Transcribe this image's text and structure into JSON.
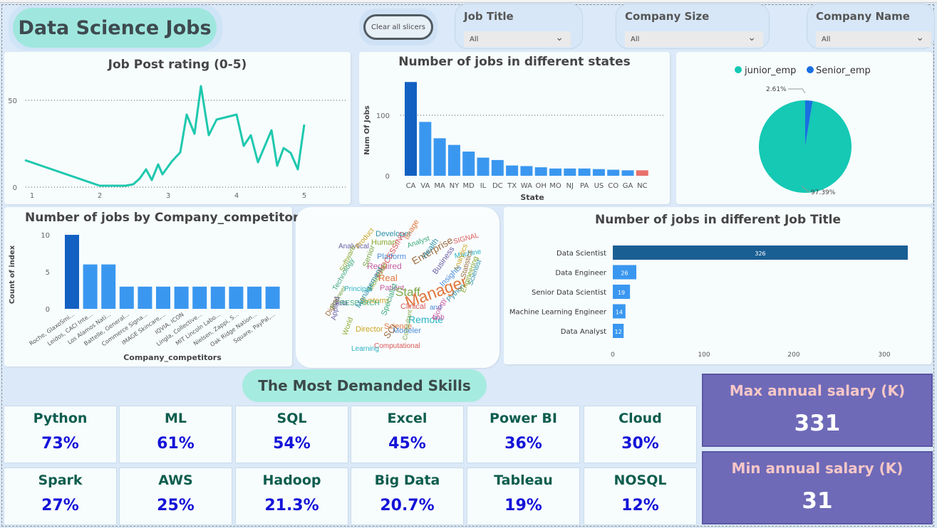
{
  "header": {
    "title": "Data Science Jobs",
    "clear_label": "Clear all slicers",
    "slicers": [
      {
        "label": "Job Title",
        "value": "All"
      },
      {
        "label": "Company Size",
        "value": "All"
      },
      {
        "label": "Company Name",
        "value": "All"
      }
    ]
  },
  "rating_chart": {
    "title": "Job Post rating (0-5)",
    "x_ticks": [
      "1",
      "2",
      "3",
      "4",
      "5"
    ],
    "y_ticks": [
      "0",
      "50"
    ],
    "line_color": "#1fc8ae"
  },
  "states_chart": {
    "title": "Number of jobs in different states",
    "ylabel": "Num Of Jobs",
    "xlabel": "State",
    "y_ticks": [
      "0",
      "100"
    ],
    "categories": [
      "CA",
      "VA",
      "MA",
      "NY",
      "MD",
      "IL",
      "DC",
      "TX",
      "WA",
      "OH",
      "MO",
      "NJ",
      "PA",
      "US",
      "CO",
      "GA",
      "NC"
    ],
    "values": [
      155,
      89,
      62,
      51,
      40,
      30,
      26,
      17,
      16,
      14,
      12,
      12,
      12,
      11,
      10,
      9,
      9
    ]
  },
  "pie_chart": {
    "legend": [
      {
        "name": "junior_emp",
        "color": "#15c9b4"
      },
      {
        "name": "Senior_emp",
        "color": "#1a6fe0"
      }
    ],
    "slices": [
      {
        "label": "97.39%",
        "value": 97.39
      },
      {
        "label": "2.61%",
        "value": 2.61
      }
    ]
  },
  "competitors_chart": {
    "title": "Number of jobs by Company_competitors",
    "ylabel": "Count of index",
    "xlabel": "Company_competitors",
    "y_ticks": [
      "0",
      "5",
      "10"
    ],
    "categories": [
      "Roche, GlaxoSmi...",
      "Leidos, CACI Inte...",
      "Los Alamos Nati...",
      "Battelle, General...",
      "Commerce Signa...",
      "IMAGE Skincare,...",
      "IQVIA, ICON",
      "Lingla, Collective...",
      "MIT Lincoln Labo...",
      "Nielsen, Zappi, S...",
      "Oak Ridge Nation...",
      "Square, PayPal,..."
    ],
    "values": [
      10,
      6,
      6,
      3,
      3,
      3,
      3,
      3,
      3,
      3,
      3,
      3
    ]
  },
  "wordcloud": [
    "Developer",
    "Human",
    "Image",
    "Analytical",
    "Product",
    "Analyst",
    "SIGNAL",
    "Platform",
    "Enterprise",
    "Machine",
    "Required",
    "Senior",
    "Health",
    "Software",
    "Real",
    "Business",
    "Analytics",
    "Technology",
    "PROCESSING",
    "Insights",
    "Statistics",
    "Principal",
    "Patient",
    "Staff",
    "Scientist",
    "Molecular",
    "Manager",
    "Data",
    "Systems",
    "RESEARCH",
    "Clinical",
    "and",
    "Digital",
    "Remote",
    "Lab",
    "Engineer",
    "Management",
    "World",
    "Science",
    "Applied",
    "Director",
    "Specialist",
    "Computational",
    "Modeler",
    "SCI",
    "Learning",
    "Biology",
    "Consultant",
    "Python",
    "Engineering"
  ],
  "jobtitle_chart": {
    "title": "Number of jobs in different Job Title",
    "x_ticks": [
      "0",
      "100",
      "200",
      "300"
    ],
    "categories": [
      "Data Scientist",
      "Data Engineer",
      "Senior Data Scientist",
      "Machine Learning Engineer",
      "Data Analyst"
    ],
    "values": [
      326,
      26,
      19,
      14,
      12
    ]
  },
  "skills": {
    "title": "The Most Demanded Skills",
    "items": [
      {
        "name": "Python",
        "pct": "73%"
      },
      {
        "name": "ML",
        "pct": "61%"
      },
      {
        "name": "SQL",
        "pct": "54%"
      },
      {
        "name": "Excel",
        "pct": "45%"
      },
      {
        "name": "Power BI",
        "pct": "36%"
      },
      {
        "name": "Cloud",
        "pct": "30%"
      },
      {
        "name": "Spark",
        "pct": "27%"
      },
      {
        "name": "AWS",
        "pct": "25%"
      },
      {
        "name": "Hadoop",
        "pct": "21.3%"
      },
      {
        "name": "Big Data",
        "pct": "20.7%"
      },
      {
        "name": "Tableau",
        "pct": "19%"
      },
      {
        "name": "NOSQL",
        "pct": "12%"
      }
    ]
  },
  "salary": {
    "max_label": "Max annual salary (K)",
    "max_value": "331",
    "min_label": "Min annual salary (K)",
    "min_value": "31"
  }
}
